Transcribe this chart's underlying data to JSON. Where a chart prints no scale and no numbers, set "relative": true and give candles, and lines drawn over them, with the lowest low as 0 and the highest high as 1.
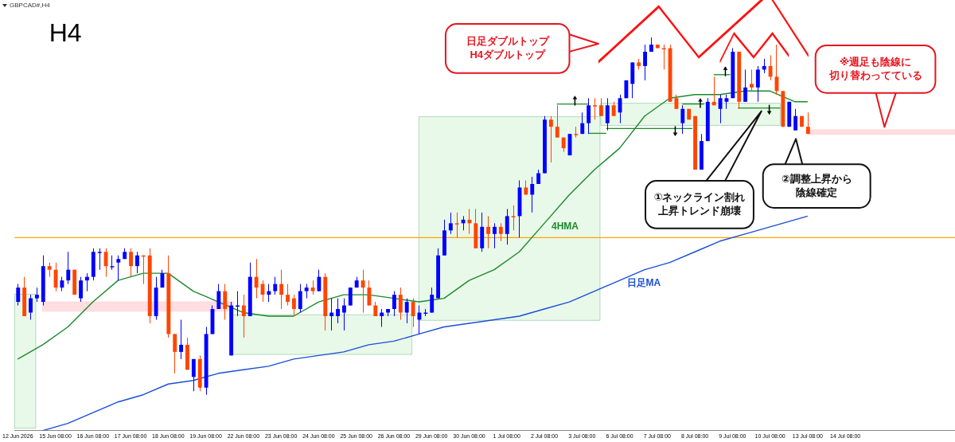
{
  "chart_data": {
    "type": "candlestick",
    "title": "GBPCAD#,H4",
    "relative": true,
    "categories": [
      "12 Jun 2026",
      null,
      null,
      null,
      null,
      null,
      "15 Jun 08:00",
      null,
      null,
      null,
      null,
      null,
      "16 Jun 08:00",
      null,
      null,
      null,
      null,
      null,
      "17 Jun 08:00",
      null,
      null,
      null,
      null,
      null,
      "18 Jun 08:00",
      null,
      null,
      null,
      null,
      null,
      "19 Jun 08:00",
      null,
      null,
      null,
      null,
      null,
      "22 Jun 08:00",
      null,
      null,
      null,
      null,
      null,
      "23 Jun 08:00",
      null,
      null,
      null,
      null,
      null,
      "24 Jun 08:00",
      null,
      null,
      null,
      null,
      null,
      "25 Jun 08:00",
      null,
      null,
      null,
      null,
      null,
      "26 Jun 08:00",
      null,
      null,
      null,
      null,
      null,
      "29 Jun 08:00",
      null,
      null,
      null,
      null,
      null,
      "30 Jun 08:00",
      null,
      null,
      null,
      null,
      null,
      "1 Jul 08:00",
      null,
      null,
      null,
      null,
      null,
      "2 Jul 08:00",
      null,
      null,
      null,
      null,
      null,
      "3 Jul 08:00",
      null,
      null,
      null,
      null,
      null,
      "6 Jul 08:00",
      null,
      null,
      null,
      null,
      null,
      "7 Jul 08:00",
      null,
      null,
      null,
      null,
      null,
      "8 Jul 08:00",
      null,
      null,
      null,
      null,
      null,
      "9 Jul 08:00",
      null,
      null,
      null,
      null,
      null,
      "10 Jul 08:00",
      null,
      null,
      null,
      null,
      null,
      "13 Jul 08:00",
      null,
      null,
      null,
      null,
      null,
      "14 Jul 08:00",
      null,
      null,
      null,
      null,
      null,
      null,
      null,
      null,
      null,
      null,
      null,
      null,
      null,
      null,
      null,
      null,
      null
    ],
    "ohlc": [
      [
        0.26,
        0.31,
        0.25,
        0.3
      ],
      [
        0.3,
        0.33,
        0.22,
        0.22
      ],
      [
        0.23,
        0.28,
        0.21,
        0.27
      ],
      [
        0.27,
        0.3,
        0.26,
        0.28
      ],
      [
        0.26,
        0.39,
        0.25,
        0.36
      ],
      [
        0.36,
        0.37,
        0.33,
        0.35
      ],
      [
        0.35,
        0.37,
        0.29,
        0.3
      ],
      [
        0.3,
        0.33,
        0.29,
        0.32
      ],
      [
        0.32,
        0.4,
        0.31,
        0.35
      ],
      [
        0.35,
        0.35,
        0.28,
        0.28
      ],
      [
        0.27,
        0.33,
        0.26,
        0.32
      ],
      [
        0.32,
        0.34,
        0.29,
        0.33
      ],
      [
        0.33,
        0.41,
        0.32,
        0.4
      ],
      [
        0.4,
        0.41,
        0.35,
        0.4
      ],
      [
        0.4,
        0.41,
        0.33,
        0.36
      ],
      [
        0.36,
        0.39,
        0.35,
        0.36
      ],
      [
        0.37,
        0.39,
        0.32,
        0.38
      ],
      [
        0.38,
        0.41,
        0.38,
        0.4
      ],
      [
        0.4,
        0.41,
        0.33,
        0.36
      ],
      [
        0.36,
        0.4,
        0.34,
        0.39
      ],
      [
        0.39,
        0.39,
        0.31,
        0.39
      ],
      [
        0.39,
        0.41,
        0.2,
        0.22
      ],
      [
        0.22,
        0.33,
        0.21,
        0.3
      ],
      [
        0.3,
        0.35,
        0.3,
        0.34
      ],
      [
        0.34,
        0.39,
        0.16,
        0.17
      ],
      [
        0.17,
        0.17,
        0.06,
        0.12
      ],
      [
        0.12,
        0.21,
        0.1,
        0.14
      ],
      [
        0.14,
        0.16,
        0.07,
        0.07
      ],
      [
        0.05,
        0.1,
        0.01,
        0.1
      ],
      [
        0.1,
        0.11,
        0.01,
        0.02
      ],
      [
        0.02,
        0.19,
        0,
        0.17
      ],
      [
        0.17,
        0.25,
        0.17,
        0.24
      ],
      [
        0.24,
        0.31,
        0.24,
        0.29
      ],
      [
        0.29,
        0.31,
        0.21,
        0.24
      ],
      [
        0.11,
        0.26,
        0.11,
        0.25
      ],
      [
        0.25,
        0.29,
        0.22,
        0.25
      ],
      [
        0.25,
        0.28,
        0.16,
        0.22
      ],
      [
        0.22,
        0.37,
        0.22,
        0.33
      ],
      [
        0.33,
        0.38,
        0.27,
        0.3
      ],
      [
        0.31,
        0.32,
        0.26,
        0.28
      ],
      [
        0.28,
        0.31,
        0.26,
        0.29
      ],
      [
        0.29,
        0.33,
        0.28,
        0.31
      ],
      [
        0.31,
        0.35,
        0.24,
        0.28
      ],
      [
        0.28,
        0.31,
        0.25,
        0.26
      ],
      [
        0.27,
        0.28,
        0.22,
        0.24
      ],
      [
        0.24,
        0.31,
        0.23,
        0.29
      ],
      [
        0.29,
        0.31,
        0.27,
        0.3
      ],
      [
        0.3,
        0.32,
        0.28,
        0.29
      ],
      [
        0.29,
        0.35,
        0.29,
        0.33
      ],
      [
        0.33,
        0.34,
        0.18,
        0.22
      ],
      [
        0.22,
        0.27,
        0.18,
        0.23
      ],
      [
        0.22,
        0.27,
        0.2,
        0.24
      ],
      [
        0.23,
        0.27,
        0.18,
        0.25
      ],
      [
        0.25,
        0.3,
        0.25,
        0.3
      ],
      [
        0.3,
        0.33,
        0.3,
        0.32
      ],
      [
        0.32,
        0.35,
        0.23,
        0.3
      ],
      [
        0.3,
        0.32,
        0.25,
        0.25
      ],
      [
        0.25,
        0.26,
        0.22,
        0.22
      ],
      [
        0.22,
        0.24,
        0.19,
        0.23
      ],
      [
        0.23,
        0.24,
        0.22,
        0.24
      ],
      [
        0.24,
        0.29,
        0.22,
        0.28
      ],
      [
        0.28,
        0.3,
        0.21,
        0.23
      ],
      [
        0.23,
        0.27,
        0.2,
        0.26
      ],
      [
        0.26,
        0.27,
        0.19,
        0.22
      ],
      [
        0.21,
        0.25,
        0.17,
        0.23
      ],
      [
        0.23,
        0.24,
        0.22,
        0.23
      ],
      [
        0.23,
        0.3,
        0.23,
        0.28
      ],
      [
        0.27,
        0.41,
        0.27,
        0.39
      ],
      [
        0.39,
        0.49,
        0.39,
        0.46
      ],
      [
        0.46,
        0.51,
        0.45,
        0.48
      ],
      [
        0.48,
        0.51,
        0.44,
        0.48
      ],
      [
        0.48,
        0.5,
        0.46,
        0.49
      ],
      [
        0.49,
        0.52,
        0.45,
        0.48
      ],
      [
        0.48,
        0.52,
        0.41,
        0.41
      ],
      [
        0.41,
        0.51,
        0.4,
        0.47
      ],
      [
        0.47,
        0.5,
        0.41,
        0.45
      ],
      [
        0.45,
        0.48,
        0.41,
        0.47
      ],
      [
        0.47,
        0.48,
        0.43,
        0.45
      ],
      [
        0.45,
        0.52,
        0.42,
        0.5
      ],
      [
        0.5,
        0.53,
        0.46,
        0.5
      ],
      [
        0.5,
        0.6,
        0.44,
        0.58
      ],
      [
        0.58,
        0.6,
        0.56,
        0.56
      ],
      [
        0.56,
        0.61,
        0.51,
        0.59
      ],
      [
        0.59,
        0.63,
        0.59,
        0.62
      ],
      [
        0.62,
        0.78,
        0.62,
        0.77
      ],
      [
        0.77,
        0.78,
        0.65,
        0.75
      ],
      [
        0.75,
        0.81,
        0.72,
        0.72
      ],
      [
        0.72,
        0.72,
        0.68,
        0.69
      ],
      [
        0.67,
        0.73,
        0.67,
        0.73
      ],
      [
        0.73,
        0.75,
        0.72,
        0.73
      ],
      [
        0.73,
        0.79,
        0.73,
        0.76
      ],
      [
        0.76,
        0.83,
        0.73,
        0.81
      ],
      [
        0.81,
        0.83,
        0.77,
        0.81
      ],
      [
        0.81,
        0.83,
        0.78,
        0.78
      ],
      [
        0.76,
        0.83,
        0.74,
        0.81
      ],
      [
        0.81,
        0.82,
        0.78,
        0.78
      ],
      [
        0.79,
        0.84,
        0.76,
        0.83
      ],
      [
        0.83,
        0.88,
        0.83,
        0.88
      ],
      [
        0.87,
        0.93,
        0.83,
        0.93
      ],
      [
        0.93,
        0.94,
        0.91,
        0.92
      ],
      [
        0.92,
        0.98,
        0.88,
        0.96
      ],
      [
        0.96,
        1,
        0.96,
        0.98
      ],
      [
        0.98,
        0.98,
        0.97,
        0.97
      ],
      [
        0.97,
        0.98,
        0.91,
        0.97
      ],
      [
        0.97,
        0.98,
        0.82,
        0.82
      ],
      [
        0.83,
        0.84,
        0.8,
        0.8
      ],
      [
        0.76,
        0.81,
        0.73,
        0.8
      ],
      [
        0.8,
        0.8,
        0.77,
        0.77
      ],
      [
        0.78,
        0.78,
        0.63,
        0.63
      ],
      [
        0.63,
        0.73,
        0.63,
        0.71
      ],
      [
        0.71,
        0.83,
        0.71,
        0.82
      ],
      [
        0.82,
        0.89,
        0.81,
        0.81
      ],
      [
        0.8,
        0.84,
        0.76,
        0.83
      ],
      [
        0.82,
        0.84,
        0.8,
        0.83
      ],
      [
        0.83,
        0.97,
        0.83,
        0.96
      ],
      [
        0.96,
        0.96,
        0.8,
        0.82
      ],
      [
        0.82,
        0.91,
        0.82,
        0.86
      ],
      [
        0.87,
        0.91,
        0.85,
        0.86
      ],
      [
        0.86,
        0.92,
        0.82,
        0.91
      ],
      [
        0.91,
        0.94,
        0.9,
        0.92
      ],
      [
        0.92,
        0.95,
        0.88,
        0.89
      ],
      [
        0.89,
        0.98,
        0.84,
        0.85
      ],
      [
        0.85,
        0.85,
        0.75,
        0.75
      ],
      [
        0.75,
        0.82,
        0.75,
        0.82
      ],
      [
        0.74,
        0.8,
        0.74,
        0.78
      ],
      [
        0.78,
        0.78,
        0.75,
        0.75
      ],
      [
        0.75,
        0.79,
        0.73,
        0.73
      ],
      null,
      null,
      null,
      null,
      null,
      null,
      null,
      null,
      null,
      null,
      null,
      null,
      null,
      null,
      null,
      null,
      null,
      null,
      null,
      null,
      null,
      null,
      null
    ],
    "colors": [
      "#0000ff",
      "#ff4500",
      "#0000ff",
      "#0000ff",
      "#0000ff",
      "#ff4500",
      "#ff4500",
      "#0000ff",
      "#0000ff",
      "#ff4500",
      "#0000ff",
      "#0000ff",
      "#0000ff",
      "#0000ff",
      "#ff4500",
      "#0000ff",
      "#0000ff",
      "#0000ff",
      "#ff4500",
      "#0000ff",
      "#ff4500",
      "#ff4500",
      "#0000ff",
      "#0000ff",
      "#ff4500",
      "#ff4500",
      "#0000ff",
      "#ff4500",
      "#0000ff",
      "#ff4500",
      "#0000ff",
      "#0000ff",
      "#0000ff",
      "#ff4500",
      "#0000ff",
      "#0000ff",
      "#ff4500",
      "#0000ff",
      "#ff4500",
      "#ff4500",
      "#0000ff",
      "#0000ff",
      "#ff4500",
      "#ff4500",
      "#ff4500",
      "#0000ff",
      "#0000ff",
      "#ff4500",
      "#0000ff",
      "#ff4500",
      "#0000ff",
      "#0000ff",
      "#0000ff",
      "#0000ff",
      "#0000ff",
      "#ff4500",
      "#ff4500",
      "#ff4500",
      "#0000ff",
      "#0000ff",
      "#0000ff",
      "#ff4500",
      "#0000ff",
      "#ff4500",
      "#0000ff",
      "#0000ff",
      "#0000ff",
      "#0000ff",
      "#0000ff",
      "#0000ff",
      "#ff4500",
      "#0000ff",
      "#ff4500",
      "#ff4500",
      "#0000ff",
      "#ff4500",
      "#0000ff",
      "#ff4500",
      "#0000ff",
      "#ff4500",
      "#0000ff",
      "#ff4500",
      "#0000ff",
      "#0000ff",
      "#0000ff",
      "#ff4500",
      "#ff4500",
      "#ff4500",
      "#0000ff",
      "#ff4500",
      "#0000ff",
      "#0000ff",
      "#ff4500",
      "#ff4500",
      "#0000ff",
      "#ff4500",
      "#0000ff",
      "#0000ff",
      "#0000ff",
      "#ff4500",
      "#0000ff",
      "#0000ff",
      "#ff4500",
      "#ff4500",
      "#ff4500",
      "#ff4500",
      "#0000ff",
      "#ff4500",
      "#ff4500",
      "#0000ff",
      "#0000ff",
      "#ff4500",
      "#0000ff",
      "#0000ff",
      "#0000ff",
      "#ff4500",
      "#0000ff",
      "#ff4500",
      "#0000ff",
      "#0000ff",
      "#ff4500",
      "#ff4500",
      "#ff4500",
      "#0000ff",
      "#0000ff",
      "#ff4500",
      "#ff4500",
      null,
      null,
      null,
      null,
      null,
      null,
      null,
      null,
      null,
      null,
      null,
      null,
      null,
      null,
      null,
      null,
      null,
      null,
      null,
      null,
      null,
      null,
      null
    ],
    "series": [
      {
        "type": "line",
        "name": "4HMA",
        "color": "#1a8a2a",
        "values": [
          0.1,
          null,
          null,
          null,
          0.14,
          null,
          null,
          null,
          0.19,
          null,
          null,
          null,
          0.26,
          null,
          null,
          null,
          0.32,
          null,
          null,
          null,
          0.34,
          null,
          null,
          null,
          0.34,
          null,
          null,
          null,
          0.29,
          null,
          null,
          null,
          0.26,
          null,
          null,
          null,
          0.23,
          null,
          null,
          null,
          0.22,
          null,
          null,
          null,
          0.22,
          null,
          null,
          null,
          0.26,
          null,
          null,
          null,
          0.28,
          null,
          null,
          null,
          0.28,
          null,
          null,
          null,
          0.27,
          null,
          null,
          null,
          0.26,
          null,
          null,
          null,
          0.27,
          null,
          null,
          null,
          0.32,
          null,
          null,
          null,
          0.35,
          null,
          null,
          null,
          0.4,
          null,
          null,
          null,
          0.48,
          null,
          null,
          null,
          0.56,
          null,
          null,
          null,
          0.63,
          null,
          null,
          null,
          0.69,
          null,
          null,
          null,
          0.78,
          null,
          null,
          null,
          0.83,
          null,
          null,
          null,
          0.84,
          null,
          null,
          null,
          0.84,
          null,
          null,
          null,
          0.85,
          null,
          null,
          null,
          0.85,
          null,
          null,
          null,
          0.82,
          null,
          0.82,
          null,
          null,
          null,
          null,
          null,
          null,
          null,
          null,
          null,
          null,
          null,
          null,
          null,
          null,
          null,
          null,
          null,
          null,
          null,
          null,
          null,
          null,
          null
        ]
      },
      {
        "type": "line",
        "name": "日足MA",
        "color": "#1a4fd6",
        "values": [
          null,
          null,
          null,
          null,
          -0.1,
          null,
          null,
          null,
          -0.08,
          null,
          null,
          null,
          -0.05,
          null,
          null,
          null,
          -0.02,
          null,
          null,
          null,
          0,
          null,
          null,
          null,
          0.03,
          null,
          null,
          null,
          0.04,
          null,
          null,
          null,
          0.06,
          null,
          null,
          null,
          0.07,
          null,
          null,
          null,
          0.08,
          null,
          null,
          null,
          0.1,
          null,
          null,
          null,
          0.11,
          null,
          null,
          null,
          0.12,
          null,
          null,
          null,
          0.14,
          null,
          null,
          null,
          0.15,
          null,
          null,
          null,
          0.17,
          null,
          null,
          null,
          0.19,
          null,
          null,
          null,
          0.2,
          null,
          null,
          null,
          0.21,
          null,
          null,
          null,
          0.22,
          null,
          null,
          null,
          0.24,
          null,
          null,
          null,
          0.26,
          null,
          null,
          null,
          0.29,
          null,
          null,
          null,
          0.32,
          null,
          null,
          null,
          0.35,
          null,
          null,
          null,
          0.37,
          null,
          null,
          null,
          0.4,
          null,
          null,
          null,
          0.43,
          null,
          null,
          null,
          0.45,
          null,
          null,
          null,
          0.47,
          null,
          null,
          null,
          0.49,
          null,
          0.5,
          null,
          null,
          null,
          null,
          null,
          null,
          null,
          null,
          null,
          null,
          null,
          null,
          null,
          null,
          null,
          null,
          null,
          null,
          null,
          null,
          null,
          null,
          null
        ]
      }
    ],
    "ref_lines": [
      {
        "axis": "y",
        "value": 0.44,
        "color": "#ffa500"
      }
    ],
    "annotations": [
      "H4",
      "日足ダブルトップ\nH4ダブルトップ",
      "※週足も陰線に切り替わってている",
      "①ネックライン割れ上昇トレンド崩壊",
      "②調整上昇から陰線確定"
    ]
  }
}
